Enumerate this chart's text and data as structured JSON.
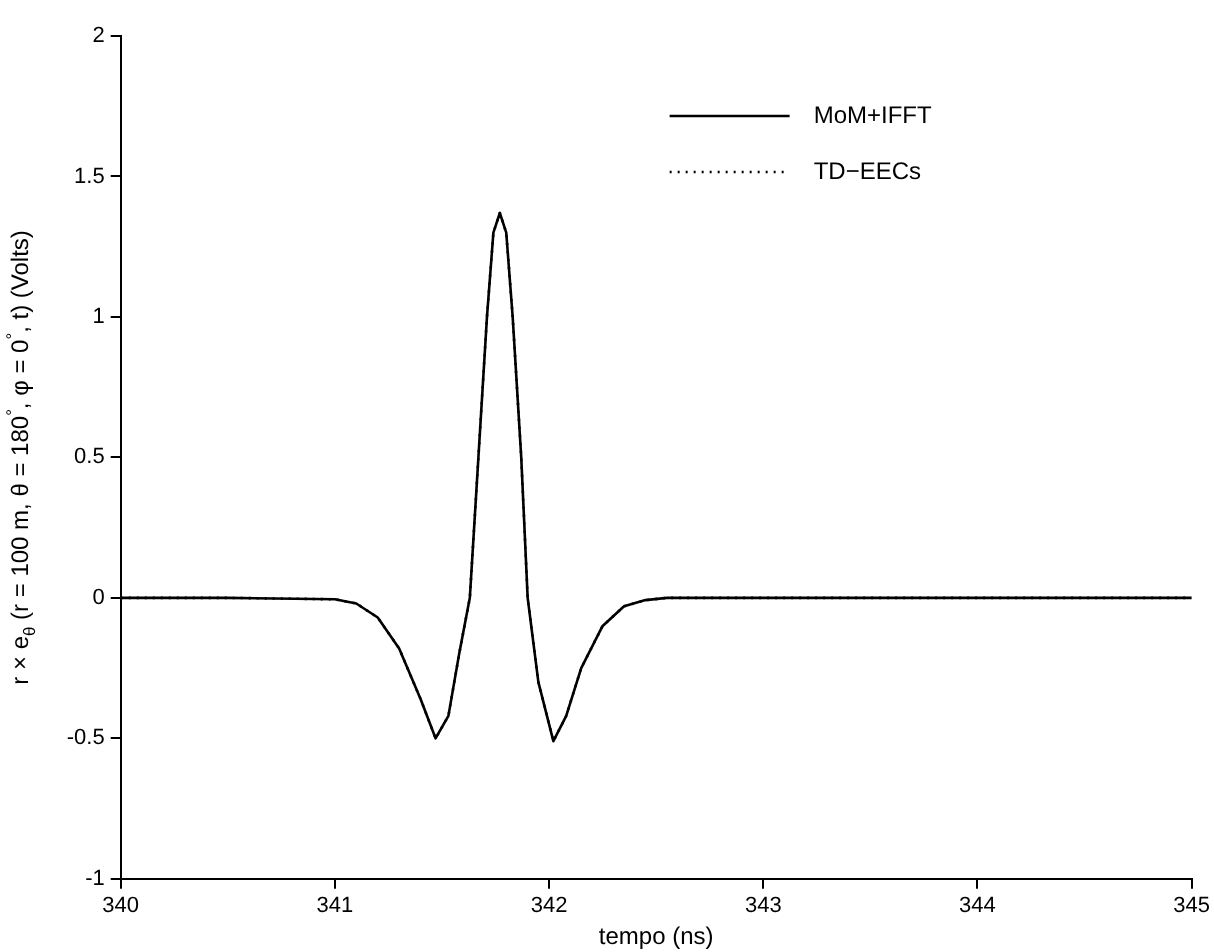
{
  "chart_data": {
    "type": "line",
    "xlabel": "tempo (ns)",
    "ylabel": "r × e$_{θ}$ (r = 100 m, θ = 180$^{°}$, φ = 0$^{°}$, t) (Volts)",
    "x": [
      340,
      340.5,
      341.0,
      341.1,
      341.2,
      341.3,
      341.4,
      341.47,
      341.53,
      341.58,
      341.63,
      341.67,
      341.71,
      341.74,
      341.77,
      341.8,
      341.83,
      341.87,
      341.9,
      341.95,
      342.02,
      342.08,
      342.15,
      342.25,
      342.35,
      342.45,
      342.55,
      345
    ],
    "series": [
      {
        "name": "MoM+IFFT",
        "color": "#000000",
        "line_style": "solid",
        "values": [
          0,
          0,
          -0.005,
          -0.02,
          -0.07,
          -0.18,
          -0.36,
          -0.5,
          -0.42,
          -0.2,
          0,
          0.5,
          1.0,
          1.3,
          1.37,
          1.3,
          1.0,
          0.5,
          0,
          -0.3,
          -0.51,
          -0.42,
          -0.25,
          -0.1,
          -0.03,
          -0.008,
          0,
          0
        ]
      },
      {
        "name": "TD−EECs",
        "color": "#000000",
        "line_style": "dotted",
        "values": [
          0,
          0,
          -0.005,
          -0.02,
          -0.07,
          -0.18,
          -0.36,
          -0.5,
          -0.42,
          -0.2,
          0,
          0.5,
          1.0,
          1.3,
          1.37,
          1.3,
          1.0,
          0.5,
          0,
          -0.3,
          -0.51,
          -0.42,
          -0.25,
          -0.1,
          -0.03,
          -0.008,
          0,
          0
        ]
      }
    ],
    "xlim": [
      340,
      345
    ],
    "xticks": [
      340,
      341,
      342,
      343,
      344,
      345
    ],
    "ylim": [
      -1,
      2
    ],
    "yticks": [
      -1,
      -0.5,
      0,
      0.5,
      1,
      1.5,
      2
    ],
    "grid": false,
    "legend": "top right",
    "marker": "none"
  }
}
